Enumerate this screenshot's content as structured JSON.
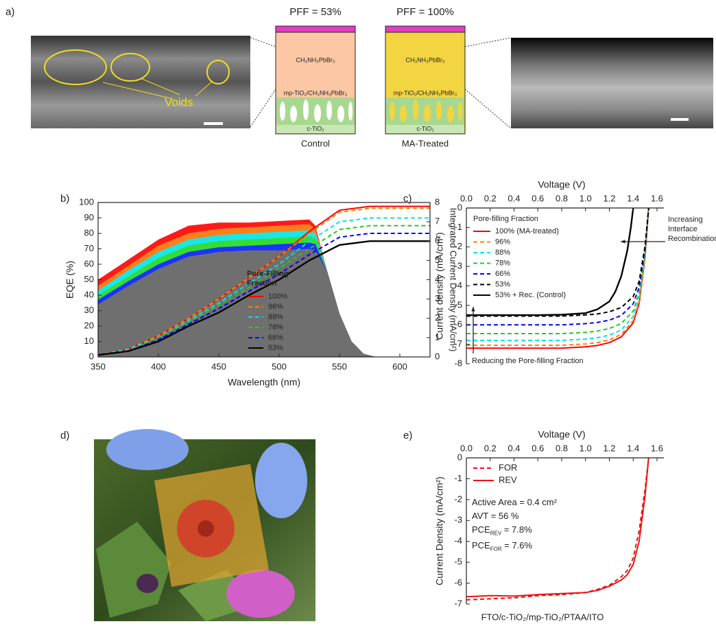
{
  "figure": {
    "panel_labels": [
      "a)",
      "b)",
      "c)",
      "d)",
      "e)"
    ],
    "a": {
      "voids": "Voids",
      "pff_control": "PFF = 53%",
      "pff_treated": "PFF = 100%",
      "control": "Control",
      "treated": "MA-Treated",
      "layers_control": [
        "CH₃NH₃PbBr₃",
        "mp-TiO₂/CH₃NH₃PbBr₃",
        "c-TiO₂"
      ],
      "layers_treated": [
        "CH₃NH₃PbBr₃",
        "mp-TiO₂/CH₃NH₃PbBr₃",
        "c-TiO₂"
      ]
    }
  },
  "chart_data": [
    {
      "type": "area",
      "x_label": "Wavelength (nm)",
      "y_label": "EQE (%)",
      "y2_label": "Integrated Current Density (mA/cm²)",
      "legend_title": "Pore-Filling Fraction",
      "xlim": [
        350,
        625
      ],
      "xticks": [
        350,
        400,
        450,
        500,
        550,
        600
      ],
      "ylim": [
        0,
        100
      ],
      "yticks": [
        0,
        10,
        20,
        30,
        40,
        50,
        60,
        70,
        80,
        90,
        100
      ],
      "y2lim": [
        0,
        8
      ],
      "y2ticks": [
        0,
        1,
        2,
        3,
        4,
        5,
        6,
        7,
        8
      ],
      "x": [
        350,
        375,
        400,
        425,
        450,
        475,
        500,
        525,
        530,
        540,
        550,
        560,
        570,
        580
      ],
      "area_series": [
        {
          "color": "#ff1a1a",
          "values": [
            50,
            63,
            76,
            85,
            87,
            87,
            88,
            89,
            85,
            55,
            28,
            10,
            2,
            0
          ]
        },
        {
          "color": "#ff7f1a",
          "values": [
            46,
            59,
            72,
            80,
            83,
            84,
            85,
            86,
            83,
            55,
            28,
            10,
            2,
            0
          ]
        },
        {
          "color": "#19e6e6",
          "values": [
            43,
            56,
            68,
            76,
            79,
            80,
            81,
            82,
            80,
            55,
            28,
            10,
            2,
            0
          ]
        },
        {
          "color": "#33dd33",
          "values": [
            40,
            52,
            64,
            72,
            75,
            76,
            77,
            78,
            77,
            55,
            28,
            10,
            2,
            0
          ]
        },
        {
          "color": "#1a33ff",
          "values": [
            37,
            49,
            60,
            68,
            71,
            72,
            73,
            74,
            73,
            55,
            28,
            10,
            2,
            0
          ]
        },
        {
          "color": "#6f6f6f",
          "values": [
            34,
            46,
            57,
            65,
            68,
            69,
            69,
            70,
            69,
            55,
            28,
            10,
            2,
            0
          ]
        }
      ],
      "y2_x": [
        350,
        375,
        400,
        425,
        450,
        475,
        500,
        525,
        550,
        575,
        600,
        625
      ],
      "y2_series": [
        {
          "name": "100%",
          "axis": "y2",
          "color": "#ff0000",
          "style": "solid",
          "values": [
            0.1,
            0.4,
            1.1,
            2.0,
            3.0,
            4.1,
            5.2,
            6.5,
            7.6,
            7.8,
            7.8,
            7.8
          ]
        },
        {
          "name": "96%",
          "axis": "y2",
          "color": "#ff8000",
          "style": "dashed",
          "values": [
            0.1,
            0.4,
            1.1,
            2.0,
            3.0,
            4.1,
            5.2,
            6.4,
            7.5,
            7.7,
            7.7,
            7.7
          ]
        },
        {
          "name": "88%",
          "axis": "y2",
          "color": "#00e5ee",
          "style": "dashed",
          "values": [
            0.1,
            0.4,
            1.0,
            1.9,
            2.8,
            3.8,
            4.8,
            6.0,
            7.0,
            7.2,
            7.2,
            7.2
          ]
        },
        {
          "name": "78%",
          "axis": "y2",
          "color": "#22cc22",
          "style": "dashed",
          "values": [
            0.1,
            0.3,
            1.0,
            1.8,
            2.7,
            3.6,
            4.6,
            5.6,
            6.6,
            6.8,
            6.8,
            6.8
          ]
        },
        {
          "name": "66%",
          "axis": "y2",
          "color": "#0000ff",
          "style": "dashed",
          "values": [
            0.1,
            0.3,
            0.9,
            1.7,
            2.5,
            3.4,
            4.3,
            5.3,
            6.2,
            6.4,
            6.4,
            6.4
          ]
        },
        {
          "name": "53%",
          "axis": "y2",
          "color": "#000000",
          "style": "solid",
          "values": [
            0.1,
            0.3,
            0.8,
            1.6,
            2.3,
            3.2,
            4.0,
            5.0,
            5.8,
            6.0,
            6.0,
            6.0
          ]
        }
      ]
    },
    {
      "type": "line",
      "x_axis": "top",
      "x_label": "Voltage (V)",
      "y_label": "Current density (mA/cm²)",
      "legend_title": "Pore-filling Fraction",
      "xlim": [
        0,
        1.6
      ],
      "xticks": [
        {
          "value": 0,
          "label": "0.0"
        },
        0.2,
        0.4,
        0.6,
        0.8,
        {
          "value": 1,
          "label": "1.0"
        },
        1.2,
        1.4,
        1.6
      ],
      "ylim": [
        -8,
        0
      ],
      "yticks": [
        0,
        -1,
        -2,
        -3,
        -4,
        -5,
        -6,
        -7,
        -8
      ],
      "annotations": [
        {
          "text": "Increasing Interface Recombinations"
        },
        {
          "text": "Reducing the Pore-filling Fraction"
        }
      ],
      "series": [
        {
          "name": "100% (MA-treated)",
          "color": "#ff0000",
          "style": "solid",
          "x": [
            0,
            0.2,
            0.4,
            0.6,
            0.8,
            1.0,
            1.1,
            1.2,
            1.3,
            1.4,
            1.45,
            1.5,
            1.53
          ],
          "values": [
            -7.2,
            -7.2,
            -7.2,
            -7.2,
            -7.2,
            -7.13,
            -7.06,
            -6.91,
            -6.62,
            -5.9,
            -4.9,
            -2.52,
            0
          ]
        },
        {
          "name": "96%",
          "color": "#ff8000",
          "style": "dashed",
          "x": [
            0,
            0.2,
            0.4,
            0.6,
            0.8,
            1.0,
            1.1,
            1.2,
            1.3,
            1.4,
            1.45,
            1.5,
            1.53
          ],
          "values": [
            -7.05,
            -7.05,
            -7.05,
            -7.05,
            -7.05,
            -6.98,
            -6.91,
            -6.77,
            -6.49,
            -5.78,
            -4.79,
            -2.47,
            0
          ]
        },
        {
          "name": "88%",
          "color": "#00e5ee",
          "style": "dashed",
          "x": [
            0,
            0.2,
            0.4,
            0.6,
            0.8,
            1.0,
            1.1,
            1.2,
            1.3,
            1.4,
            1.45,
            1.5,
            1.53
          ],
          "values": [
            -6.8,
            -6.8,
            -6.8,
            -6.8,
            -6.8,
            -6.73,
            -6.66,
            -6.53,
            -6.26,
            -5.58,
            -4.62,
            -2.38,
            0
          ]
        },
        {
          "name": "78%",
          "color": "#22cc22",
          "style": "dashed",
          "x": [
            0,
            0.2,
            0.4,
            0.6,
            0.8,
            1.0,
            1.1,
            1.2,
            1.3,
            1.4,
            1.45,
            1.5,
            1.53
          ],
          "values": [
            -6.45,
            -6.45,
            -6.45,
            -6.45,
            -6.45,
            -6.39,
            -6.32,
            -6.19,
            -5.93,
            -5.29,
            -4.39,
            -2.26,
            0
          ]
        },
        {
          "name": "66%",
          "color": "#0000ff",
          "style": "dashed",
          "x": [
            0,
            0.2,
            0.4,
            0.6,
            0.8,
            1.0,
            1.1,
            1.2,
            1.3,
            1.4,
            1.45,
            1.5,
            1.53
          ],
          "values": [
            -6.0,
            -6.0,
            -6.0,
            -6.0,
            -6.0,
            -5.94,
            -5.88,
            -5.76,
            -5.52,
            -4.92,
            -4.08,
            -2.1,
            0
          ]
        },
        {
          "name": "53%",
          "color": "#000000",
          "style": "dashed",
          "x": [
            0,
            0.2,
            0.4,
            0.6,
            0.8,
            1.0,
            1.1,
            1.2,
            1.3,
            1.4,
            1.45,
            1.5,
            1.53
          ],
          "values": [
            -5.55,
            -5.55,
            -5.55,
            -5.55,
            -5.55,
            -5.49,
            -5.44,
            -5.33,
            -5.11,
            -4.55,
            -3.77,
            -1.94,
            0
          ]
        },
        {
          "name": "53% + Rec. (Control)",
          "color": "#000000",
          "style": "solid",
          "x": [
            0,
            0.2,
            0.4,
            0.6,
            0.8,
            1.0,
            1.1,
            1.2,
            1.25,
            1.3,
            1.35,
            1.38,
            1.4
          ],
          "values": [
            -5.5,
            -5.5,
            -5.5,
            -5.5,
            -5.48,
            -5.4,
            -5.2,
            -4.8,
            -4.3,
            -3.5,
            -2.2,
            -1.0,
            0
          ]
        }
      ]
    },
    {
      "type": "line",
      "x_axis": "top",
      "x_label": "Voltage (V)",
      "y_label": "Current Density (mA/cm²)",
      "bottom_label": "FTO/c-TiO₂/mp-TiO₂/PTAA/ITO",
      "xlim": [
        0,
        1.6
      ],
      "xticks": [
        {
          "value": 0,
          "label": "0.0"
        },
        0.2,
        0.4,
        0.6,
        0.8,
        {
          "value": 1,
          "label": "1.0"
        },
        1.2,
        1.4,
        1.6
      ],
      "ylim": [
        -7,
        0
      ],
      "yticks": [
        0,
        -1,
        -2,
        -3,
        -4,
        -5,
        -6,
        -7
      ],
      "annotations": [
        {
          "text": "Active Area = 0.4 cm²"
        },
        {
          "text": "AVT = 56 %"
        },
        {
          "text": "PCE",
          "subscript": "REV",
          "rest": "= 7.8%"
        },
        {
          "text": "PCE",
          "subscript": "FOR",
          "rest": "= 7.6%"
        }
      ],
      "series": [
        {
          "name": "FOR",
          "color": "#ee1111",
          "style": "dashed",
          "x": [
            0,
            0.2,
            0.4,
            0.6,
            0.8,
            1.0,
            1.1,
            1.2,
            1.3,
            1.35,
            1.4,
            1.45,
            1.5,
            1.53
          ],
          "values": [
            -6.8,
            -6.75,
            -6.7,
            -6.6,
            -6.55,
            -6.45,
            -6.3,
            -6.1,
            -5.7,
            -5.4,
            -4.8,
            -3.5,
            -1.5,
            0
          ]
        },
        {
          "name": "REV",
          "color": "#ee1111",
          "style": "solid",
          "x": [
            0,
            0.2,
            0.4,
            0.6,
            0.8,
            1.0,
            1.1,
            1.2,
            1.3,
            1.35,
            1.4,
            1.45,
            1.5,
            1.53
          ],
          "values": [
            -6.65,
            -6.6,
            -6.62,
            -6.55,
            -6.5,
            -6.45,
            -6.35,
            -6.15,
            -5.85,
            -5.6,
            -5.1,
            -4.0,
            -1.8,
            0
          ]
        }
      ]
    }
  ]
}
